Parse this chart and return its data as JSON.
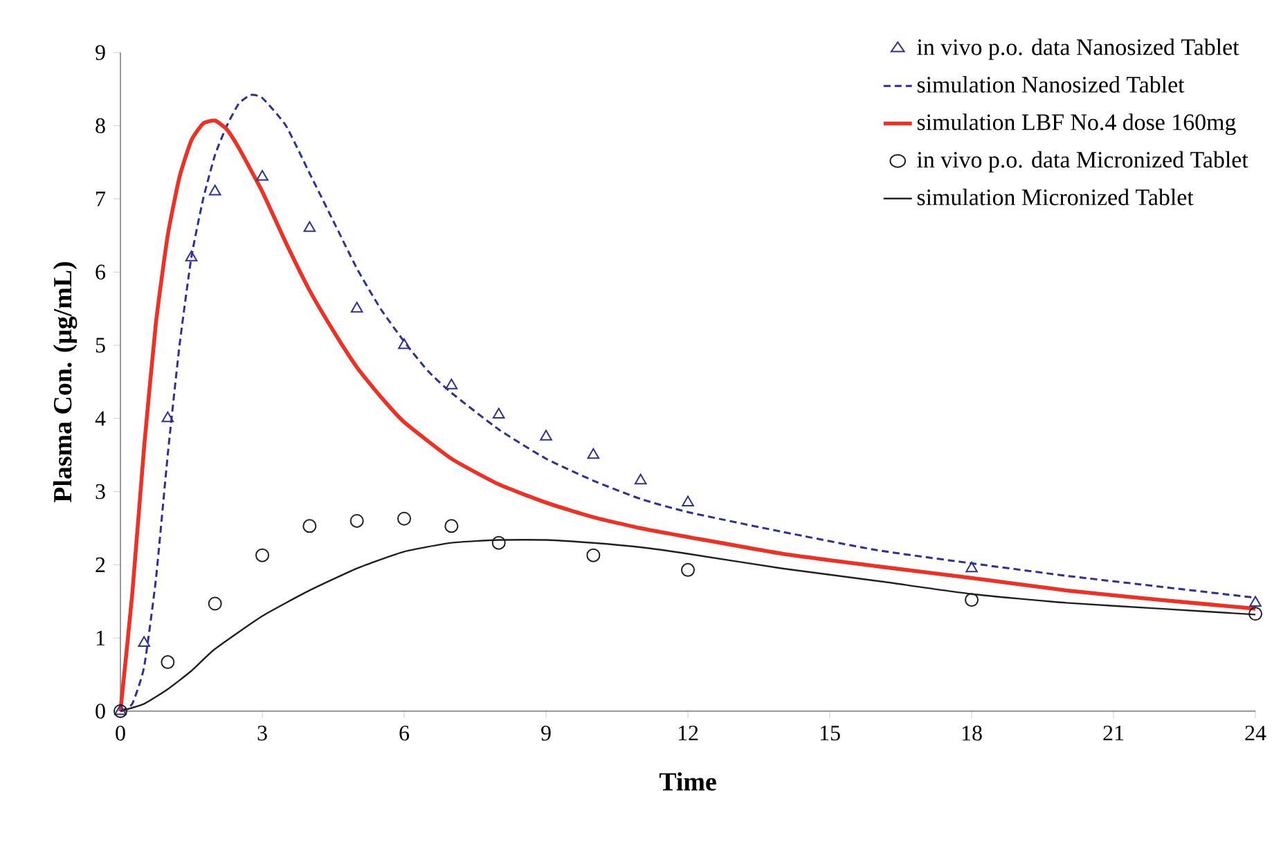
{
  "chart_data": {
    "type": "line",
    "xlabel": "Time",
    "ylabel": "Plasma Con. (μg/mL)",
    "xlim": [
      0,
      24
    ],
    "ylim": [
      0,
      9
    ],
    "xticks": [
      0,
      3,
      6,
      9,
      12,
      15,
      18,
      21,
      24
    ],
    "yticks": [
      0,
      1,
      2,
      3,
      4,
      5,
      6,
      7,
      8,
      9
    ],
    "legend": "top right",
    "series": [
      {
        "name": "in vivo p.o. data Nanosized Tablet",
        "type": "scatter",
        "marker": "triangle",
        "color": "#2e3192",
        "x": [
          0,
          0.5,
          1,
          1.5,
          2,
          3,
          4,
          5,
          6,
          7,
          8,
          9,
          10,
          11,
          12,
          18,
          24
        ],
        "values": [
          0,
          0.93,
          4.0,
          6.2,
          7.1,
          7.3,
          6.6,
          5.5,
          5.0,
          4.45,
          4.05,
          3.75,
          3.5,
          3.15,
          2.85,
          1.95,
          1.48
        ]
      },
      {
        "name": "simulation Nanosized Tablet",
        "line_style": "dashed",
        "color": "#2e3192",
        "x": [
          0,
          0.25,
          0.5,
          0.75,
          1,
          1.25,
          1.5,
          1.75,
          2,
          2.25,
          2.5,
          2.75,
          3,
          3.5,
          4,
          4.5,
          5,
          5.5,
          6,
          6.5,
          7,
          8,
          9,
          10,
          11,
          12,
          14,
          16,
          18,
          20,
          22,
          24
        ],
        "values": [
          0,
          0.1,
          0.6,
          1.8,
          3.5,
          5.0,
          6.2,
          7.0,
          7.6,
          8.0,
          8.3,
          8.42,
          8.38,
          8.0,
          7.35,
          6.7,
          6.05,
          5.5,
          5.05,
          4.65,
          4.35,
          3.85,
          3.45,
          3.15,
          2.9,
          2.72,
          2.45,
          2.2,
          2.02,
          1.85,
          1.7,
          1.55
        ]
      },
      {
        "name": "simulation LBF No.4 dose 160mg",
        "line_style": "solid",
        "color": "#ee3124",
        "x": [
          0,
          0.25,
          0.5,
          0.75,
          1,
          1.25,
          1.5,
          1.75,
          2,
          2.25,
          2.5,
          3,
          3.5,
          4,
          4.5,
          5,
          5.5,
          6,
          7,
          8,
          9,
          10,
          11,
          12,
          14,
          16,
          18,
          20,
          22,
          24
        ],
        "values": [
          0,
          1.6,
          3.6,
          5.3,
          6.5,
          7.3,
          7.8,
          8.03,
          8.07,
          7.95,
          7.7,
          7.1,
          6.4,
          5.75,
          5.2,
          4.7,
          4.3,
          3.95,
          3.45,
          3.1,
          2.85,
          2.65,
          2.5,
          2.38,
          2.15,
          1.98,
          1.82,
          1.65,
          1.52,
          1.4
        ]
      },
      {
        "name": "in vivo p.o. data Micronized Tablet",
        "type": "scatter",
        "marker": "circle",
        "color": "#231f20",
        "x": [
          0,
          1,
          2,
          3,
          4,
          5,
          6,
          7,
          8,
          10,
          12,
          18,
          24
        ],
        "values": [
          0,
          0.67,
          1.47,
          2.13,
          2.53,
          2.6,
          2.63,
          2.53,
          2.3,
          2.13,
          1.93,
          1.52,
          1.33
        ]
      },
      {
        "name": "simulation Micronized Tablet",
        "line_style": "solid",
        "color": "#231f20",
        "x": [
          0,
          0.5,
          1,
          1.5,
          2,
          3,
          4,
          5,
          6,
          7,
          8,
          9,
          10,
          11,
          12,
          14,
          16,
          18,
          20,
          22,
          24
        ],
        "values": [
          0,
          0.1,
          0.3,
          0.55,
          0.85,
          1.3,
          1.65,
          1.95,
          2.18,
          2.3,
          2.34,
          2.34,
          2.3,
          2.24,
          2.15,
          1.95,
          1.78,
          1.6,
          1.48,
          1.4,
          1.32
        ]
      }
    ]
  }
}
